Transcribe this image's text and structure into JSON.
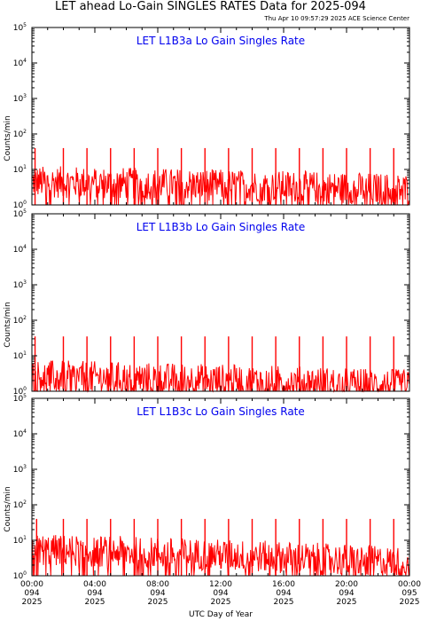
{
  "header": {
    "title": "LET ahead Lo-Gain SINGLES RATES Data for 2025-094",
    "timestamp": "Thu Apr 10 09:57:29 2025 ACE Science Center"
  },
  "colors": {
    "series": "#ff0000",
    "panel_title": "#0000ee",
    "axes": "#000000"
  },
  "chart_data": [
    {
      "type": "line",
      "title": "LET L1B3a Lo Gain Singles Rate",
      "ylabel": "Counts/min",
      "yscale": "log",
      "ylim": [
        1,
        100000
      ],
      "y_ticks": [
        "10^0",
        "10^1",
        "10^2",
        "10^3",
        "10^4",
        "10^5"
      ],
      "xlim_hours": [
        0,
        24
      ],
      "baseline_description_values": {
        "start_level": 5,
        "end_level": 3
      },
      "spikes": {
        "times_hours": [
          0.2,
          2.0,
          3.5,
          5.0,
          6.5,
          8.0,
          9.5,
          11.0,
          12.5,
          14.0,
          15.5,
          17.0,
          18.5,
          20.0,
          21.5,
          23.0
        ],
        "peak_values": [
          40,
          40,
          40,
          40,
          40,
          40,
          40,
          40,
          40,
          40,
          40,
          40,
          40,
          40,
          40,
          40
        ]
      }
    },
    {
      "type": "line",
      "title": "LET L1B3b Lo Gain Singles Rate",
      "ylabel": "Counts/min",
      "yscale": "log",
      "ylim": [
        1,
        100000
      ],
      "y_ticks": [
        "10^0",
        "10^1",
        "10^2",
        "10^3",
        "10^4",
        "10^5"
      ],
      "xlim_hours": [
        0,
        24
      ],
      "baseline_description_values": {
        "start_level": 3,
        "end_level": 1.6
      },
      "spikes": {
        "times_hours": [
          0.2,
          2.0,
          3.5,
          5.0,
          6.5,
          8.0,
          9.5,
          11.0,
          12.5,
          14.0,
          15.5,
          17.0,
          18.5,
          20.0,
          21.5,
          23.0
        ],
        "peak_values": [
          35,
          35,
          35,
          35,
          35,
          35,
          35,
          35,
          35,
          35,
          35,
          35,
          35,
          35,
          35,
          35
        ]
      }
    },
    {
      "type": "line",
      "title": "LET L1B3c Lo Gain Singles Rate",
      "ylabel": "Counts/min",
      "yscale": "log",
      "ylim": [
        1,
        100000
      ],
      "y_ticks": [
        "10^0",
        "10^1",
        "10^2",
        "10^3",
        "10^4",
        "10^5"
      ],
      "xlim_hours": [
        0,
        24
      ],
      "baseline_description_values": {
        "start_level": 6,
        "end_level": 2.5
      },
      "spikes": {
        "times_hours": [
          0.3,
          2.0,
          3.5,
          5.0,
          6.5,
          8.0,
          9.5,
          11.0,
          12.5,
          14.0,
          15.5,
          17.0,
          18.5,
          20.0,
          21.5,
          23.0
        ],
        "peak_values": [
          40,
          40,
          40,
          40,
          40,
          40,
          40,
          40,
          40,
          40,
          40,
          40,
          40,
          40,
          40,
          40
        ]
      }
    }
  ],
  "x_axis": {
    "label": "UTC Day of Year",
    "ticks": [
      {
        "hours": 0,
        "time": "00:00",
        "doy": "094",
        "year": "2025"
      },
      {
        "hours": 4,
        "time": "04:00",
        "doy": "094",
        "year": "2025"
      },
      {
        "hours": 8,
        "time": "08:00",
        "doy": "094",
        "year": "2025"
      },
      {
        "hours": 12,
        "time": "12:00",
        "doy": "094",
        "year": "2025"
      },
      {
        "hours": 16,
        "time": "16:00",
        "doy": "094",
        "year": "2025"
      },
      {
        "hours": 20,
        "time": "20:00",
        "doy": "094",
        "year": "2025"
      },
      {
        "hours": 24,
        "time": "00:00",
        "doy": "095",
        "year": "2025"
      }
    ]
  }
}
